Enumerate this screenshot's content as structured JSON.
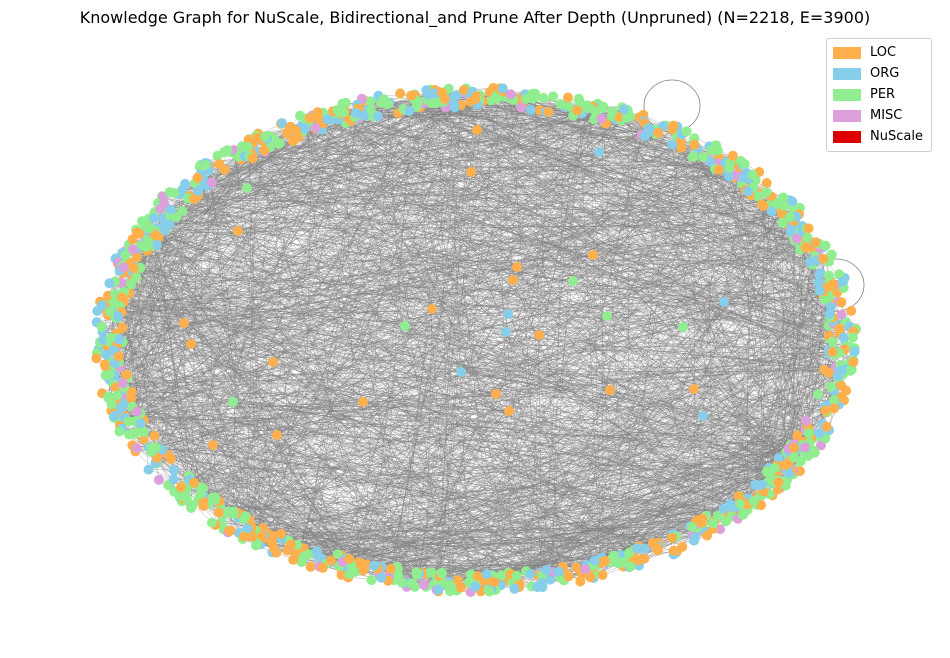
{
  "title": "Knowledge Graph for NuScale, Bidirectional_and Prune After Depth (Unpruned) (N=2218, E=3900)",
  "graph": {
    "node_count": 2218,
    "edge_count": 3900,
    "edge_color": "#808080",
    "layout": "ellipse ring with sparse interior nodes"
  },
  "legend": {
    "items": [
      {
        "label": "LOC",
        "color": "#fdb04b"
      },
      {
        "label": "ORG",
        "color": "#87ceeb"
      },
      {
        "label": "PER",
        "color": "#90ee90"
      },
      {
        "label": "MISC",
        "color": "#dda0dd"
      },
      {
        "label": "NuScale",
        "color": "#dd0000"
      }
    ]
  }
}
